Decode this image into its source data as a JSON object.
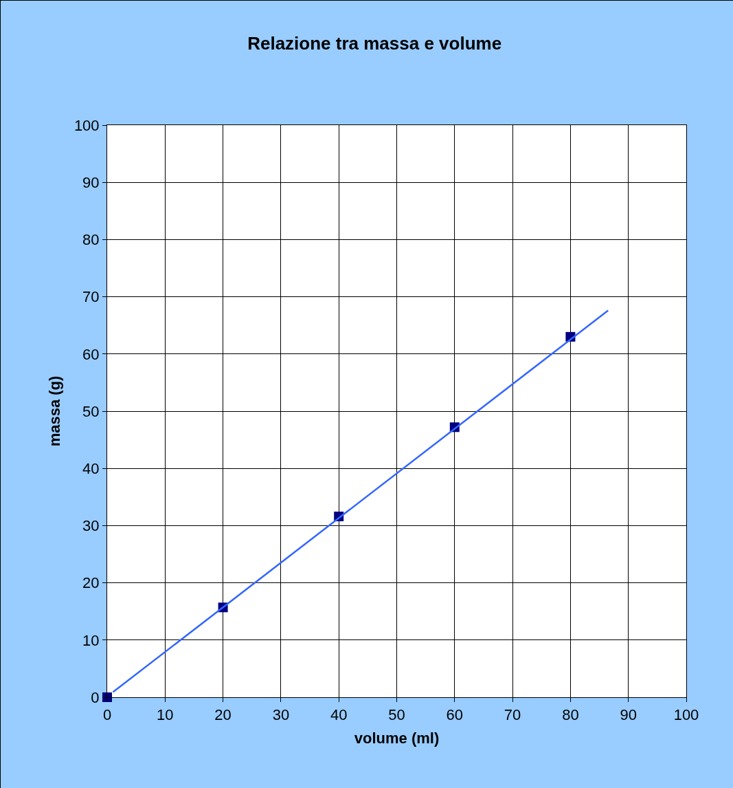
{
  "chart_data": {
    "type": "scatter",
    "title": "Relazione tra massa e volume",
    "xlabel": "volume (ml)",
    "ylabel": "massa (g)",
    "x": [
      0,
      20,
      40,
      60,
      80
    ],
    "series": [
      {
        "color": "#000080",
        "marker": "square",
        "values": [
          0,
          15.7,
          31.6,
          47.2,
          63
        ]
      },
      {
        "type": "line",
        "color": "#3366ff",
        "line_style": "solid",
        "x": [
          1,
          86.5
        ],
        "values": [
          0.9,
          67.6
        ]
      }
    ],
    "xlim": [
      0,
      100
    ],
    "xticks": [
      0,
      10,
      20,
      30,
      40,
      50,
      60,
      70,
      80,
      90,
      100
    ],
    "ylim": [
      0,
      100
    ],
    "yticks": [
      0,
      10,
      20,
      30,
      40,
      50,
      60,
      70,
      80,
      90,
      100
    ],
    "grid": true
  }
}
